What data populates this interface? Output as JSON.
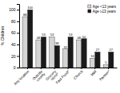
{
  "chart_data": {
    "type": "bar",
    "categories": [
      "Any location",
      "Outside\ncounty",
      "Grocery\nstore*",
      "Fast Food*",
      "Church",
      "Mall",
      "Partner*"
    ],
    "series": [
      {
        "name": "Age <13 years",
        "color": "#d4d4d4",
        "values": [
          88,
          48,
          53,
          32,
          48,
          16,
          5
        ]
      },
      {
        "name": "Age ≥13 years",
        "color": "#1a1a1a",
        "values": [
          100,
          53,
          38,
          53,
          50,
          27,
          27
        ]
      }
    ],
    "ylabel": "% Children",
    "ylim": [
      0,
      110
    ],
    "yticks": [
      0,
      20,
      40,
      60,
      80,
      100
    ],
    "data_labels": true,
    "legend": "upper right",
    "grid": false
  }
}
